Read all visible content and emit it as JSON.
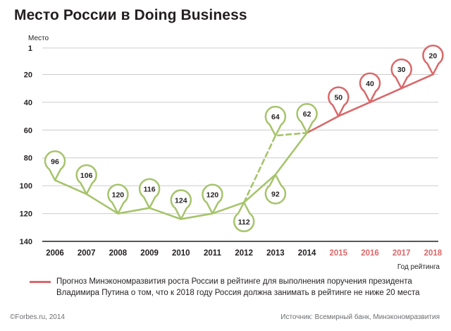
{
  "header": {
    "title": "Место  России в Doing Business"
  },
  "colors": {
    "green": "#a6c46c",
    "red": "#d9686a",
    "grid": "#cccccc",
    "axis": "#231f20"
  },
  "chart_data": {
    "type": "line",
    "title": "Место  России в Doing Business",
    "ylabel": "Место",
    "xlabel": "Год рейтинга",
    "y_inverted": true,
    "ylim": [
      140,
      1
    ],
    "yticks": [
      1,
      20,
      40,
      60,
      80,
      100,
      120,
      140
    ],
    "categories": [
      "2006",
      "2007",
      "2008",
      "2009",
      "2010",
      "2011",
      "2012",
      "2013",
      "2014",
      "2015",
      "2016",
      "2017",
      "2018"
    ],
    "category_colors": [
      "#231f20",
      "#231f20",
      "#231f20",
      "#231f20",
      "#231f20",
      "#231f20",
      "#231f20",
      "#231f20",
      "#231f20",
      "#d9686a",
      "#d9686a",
      "#d9686a",
      "#d9686a"
    ],
    "grid": true,
    "series": [
      {
        "style": "solid",
        "color": "#a6c46c",
        "x": [
          "2006",
          "2007",
          "2008",
          "2009",
          "2010",
          "2011",
          "2012",
          "2013",
          "2014"
        ],
        "values": [
          96,
          106,
          120,
          116,
          124,
          120,
          112,
          92,
          62
        ]
      },
      {
        "style": "dashed",
        "color": "#a6c46c",
        "x": [
          "2012",
          "2013",
          "2014"
        ],
        "values": [
          112,
          64,
          62
        ]
      },
      {
        "name": "Прогноз Минэкономразвития роста России в рейтинге для выполнения поручения президента Владимира Путина о том, что к 2018 году Россия должна занимать в рейтинге не ниже 20 места",
        "style": "solid",
        "color": "#d9686a",
        "x": [
          "2014",
          "2015",
          "2016",
          "2017",
          "2018"
        ],
        "values": [
          62,
          50,
          40,
          30,
          20
        ]
      }
    ],
    "markers": [
      {
        "x": "2006",
        "value": 96,
        "label": "96",
        "color": "#a6c46c",
        "dir": "up"
      },
      {
        "x": "2007",
        "value": 106,
        "label": "106",
        "color": "#a6c46c",
        "dir": "up"
      },
      {
        "x": "2008",
        "value": 120,
        "label": "120",
        "color": "#a6c46c",
        "dir": "up"
      },
      {
        "x": "2009",
        "value": 116,
        "label": "116",
        "color": "#a6c46c",
        "dir": "up"
      },
      {
        "x": "2010",
        "value": 124,
        "label": "124",
        "color": "#a6c46c",
        "dir": "up"
      },
      {
        "x": "2011",
        "value": 120,
        "label": "120",
        "color": "#a6c46c",
        "dir": "up"
      },
      {
        "x": "2012",
        "value": 112,
        "label": "112",
        "color": "#a6c46c",
        "dir": "down"
      },
      {
        "x": "2013",
        "value": 64,
        "label": "64",
        "color": "#a6c46c",
        "dir": "up"
      },
      {
        "x": "2013",
        "value": 92,
        "label": "92",
        "color": "#a6c46c",
        "dir": "down"
      },
      {
        "x": "2014",
        "value": 62,
        "label": "62",
        "color": "#a6c46c",
        "dir": "up"
      },
      {
        "x": "2015",
        "value": 50,
        "label": "50",
        "color": "#d9686a",
        "dir": "up"
      },
      {
        "x": "2016",
        "value": 40,
        "label": "40",
        "color": "#d9686a",
        "dir": "up"
      },
      {
        "x": "2017",
        "value": 30,
        "label": "30",
        "color": "#d9686a",
        "dir": "up"
      },
      {
        "x": "2018",
        "value": 20,
        "label": "20",
        "color": "#d9686a",
        "dir": "up"
      }
    ]
  },
  "legend": {
    "text": "Прогноз Минэкономразвития роста России в рейтинге для выполнения поручения президента Владимира Путина о том, что к 2018 году Россия должна занимать в рейтинге не ниже 20 места"
  },
  "footer": {
    "left": "©Forbes.ru, 2014",
    "right": "Источник: Всемирный банк, Минэкономразвития"
  }
}
